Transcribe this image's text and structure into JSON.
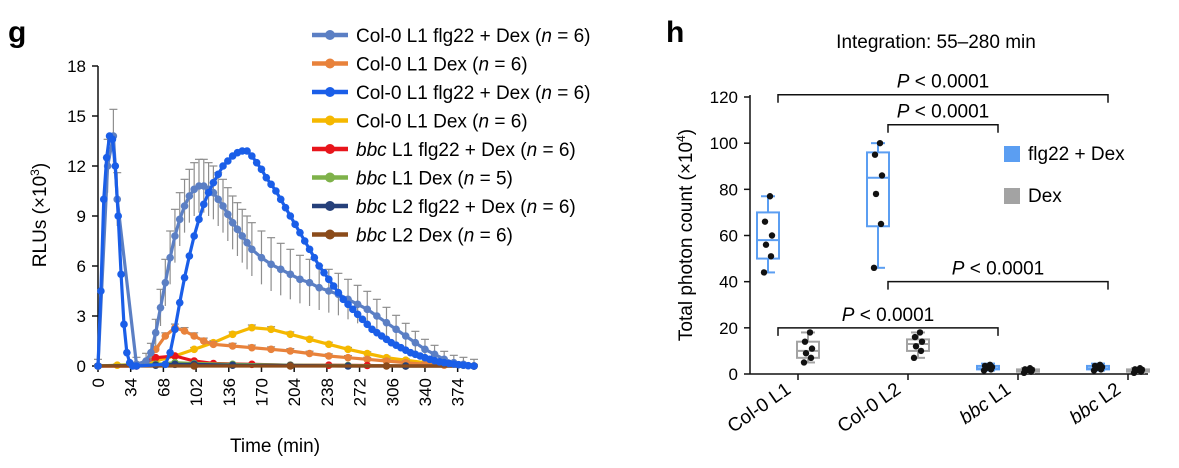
{
  "chart_data": [
    {
      "panel": "g",
      "type": "line",
      "xlabel": "Time (min)",
      "ylabel": "RLUs (×10³)",
      "ylabel_main": "RLUs (×10",
      "ylabel_sup": "3",
      "ylabel_end": ")",
      "xlim": [
        0,
        391
      ],
      "ylim": [
        0,
        18
      ],
      "xticks": [
        0,
        34,
        68,
        102,
        136,
        170,
        204,
        238,
        272,
        306,
        340,
        374
      ],
      "yticks": [
        0,
        3,
        6,
        9,
        12,
        15,
        18
      ],
      "grid": false,
      "legend_position": "top-right",
      "legend": [
        {
          "pre": "",
          "name": "Col-0 L1 flg22 + Dex (",
          "n": "n",
          "eq": " = 6)",
          "color": "#5b7fc4"
        },
        {
          "pre": "",
          "name": "Col-0 L1 Dex (",
          "n": "n",
          "eq": " = 6)",
          "color": "#e8823b"
        },
        {
          "pre": "",
          "name": "Col-0 L1 flg22 + Dex (",
          "n": "n",
          "eq": " = 6)",
          "color": "#1a5ee8"
        },
        {
          "pre": "",
          "name": "Col-0 L1 Dex (",
          "n": "n",
          "eq": " = 6)",
          "color": "#f5b800"
        },
        {
          "pre": "bbc",
          "name": " L1 flg22 + Dex (",
          "n": "n",
          "eq": " = 6)",
          "color": "#e8151b"
        },
        {
          "pre": "bbc",
          "name": " L1 Dex (",
          "n": "n",
          "eq": " = 5)",
          "color": "#7fb24a"
        },
        {
          "pre": "bbc",
          "name": " L2 flg22 + Dex (",
          "n": "n",
          "eq": " = 6)",
          "color": "#25407a"
        },
        {
          "pre": "bbc",
          "name": " L2 Dex (",
          "n": "n",
          "eq": " = 6)",
          "color": "#8b4b1a"
        }
      ],
      "series": [
        {
          "color": "#f5b800",
          "err": 0.3,
          "x": [
            0,
            20,
            40,
            60,
            80,
            100,
            120,
            140,
            160,
            180,
            200,
            220,
            240,
            260,
            280,
            300,
            320,
            340,
            360,
            380,
            391
          ],
          "y": [
            0,
            0.05,
            0.1,
            0.3,
            0.6,
            1.0,
            1.4,
            1.9,
            2.3,
            2.2,
            1.9,
            1.6,
            1.3,
            1.0,
            0.75,
            0.5,
            0.35,
            0.2,
            0.1,
            0.05,
            0
          ]
        },
        {
          "color": "#e8823b",
          "err": 0.4,
          "x": [
            0,
            40,
            50,
            60,
            70,
            80,
            90,
            100,
            110,
            120,
            140,
            160,
            180,
            200,
            220,
            240,
            260,
            280,
            300,
            320,
            340,
            360,
            391
          ],
          "y": [
            0,
            0,
            0.2,
            1.0,
            1.8,
            2.3,
            2.1,
            1.8,
            1.5,
            1.3,
            1.2,
            1.1,
            1.0,
            0.9,
            0.75,
            0.6,
            0.5,
            0.4,
            0.3,
            0.2,
            0.1,
            0.05,
            0
          ]
        },
        {
          "color": "#e8151b",
          "err": 0.1,
          "x": [
            0,
            40,
            60,
            80,
            100,
            120,
            160,
            200,
            240,
            280,
            320,
            391
          ],
          "y": [
            0,
            0,
            0.5,
            0.6,
            0.3,
            0.15,
            0.1,
            0.05,
            0.05,
            0.03,
            0,
            0
          ]
        },
        {
          "color": "#7fb24a",
          "err": 0.05,
          "x": [
            0,
            60,
            80,
            100,
            140,
            200,
            260,
            320,
            391
          ],
          "y": [
            0,
            0.1,
            0.2,
            0.15,
            0.1,
            0.05,
            0.03,
            0,
            0
          ]
        },
        {
          "color": "#25407a",
          "err": 0.05,
          "x": [
            0,
            60,
            80,
            100,
            140,
            200,
            260,
            320,
            391
          ],
          "y": [
            0,
            0.05,
            0.1,
            0.1,
            0.05,
            0.03,
            0,
            0,
            0
          ]
        },
        {
          "color": "#8b4b1a",
          "err": 0.05,
          "x": [
            0,
            100,
            200,
            300,
            391
          ],
          "y": [
            0,
            0,
            0,
            0,
            0
          ]
        },
        {
          "color": "#5b7fc4",
          "err": 1.6,
          "x": [
            0,
            10,
            16,
            20,
            40,
            50,
            55,
            60,
            65,
            70,
            75,
            80,
            85,
            90,
            95,
            100,
            105,
            110,
            115,
            120,
            125,
            130,
            135,
            140,
            145,
            150,
            155,
            160,
            170,
            180,
            190,
            200,
            210,
            220,
            230,
            240,
            250,
            260,
            270,
            280,
            290,
            300,
            310,
            320,
            330,
            340,
            350,
            360,
            370,
            380,
            391
          ],
          "y": [
            0,
            12,
            13.8,
            10,
            0.1,
            0.3,
            0.8,
            2.0,
            3.5,
            5.0,
            6.5,
            7.8,
            8.8,
            9.6,
            10.2,
            10.6,
            10.8,
            10.8,
            10.6,
            10.4,
            10.0,
            9.6,
            9.1,
            8.6,
            8.2,
            7.8,
            7.4,
            7.0,
            6.5,
            6.1,
            5.8,
            5.5,
            5.2,
            5.0,
            4.7,
            4.5,
            4.3,
            4.0,
            3.7,
            3.4,
            3.0,
            2.6,
            2.2,
            1.8,
            1.4,
            1.0,
            0.7,
            0.4,
            0.2,
            0.1,
            0
          ]
        },
        {
          "color": "#1a5ee8",
          "err": 0,
          "x": [
            0,
            3,
            6,
            9,
            12,
            15,
            18,
            21,
            24,
            27,
            30,
            33,
            36,
            40,
            70,
            75,
            80,
            85,
            90,
            95,
            100,
            105,
            110,
            115,
            120,
            125,
            130,
            135,
            140,
            145,
            150,
            155,
            160,
            165,
            170,
            175,
            180,
            185,
            190,
            195,
            200,
            205,
            210,
            215,
            220,
            225,
            230,
            235,
            240,
            245,
            250,
            255,
            260,
            265,
            270,
            275,
            280,
            285,
            290,
            295,
            300,
            305,
            310,
            315,
            320,
            325,
            330,
            335,
            340,
            345,
            350,
            355,
            360,
            365,
            370,
            375,
            380,
            385,
            391
          ],
          "y": [
            0,
            4.5,
            10.0,
            12.5,
            13.8,
            13.6,
            12.0,
            9.0,
            5.5,
            2.5,
            0.8,
            0.2,
            0,
            0,
            0.1,
            0.8,
            2.2,
            3.8,
            5.3,
            6.6,
            7.8,
            8.8,
            9.7,
            10.4,
            11.0,
            11.5,
            12.0,
            12.3,
            12.6,
            12.8,
            12.9,
            12.9,
            12.6,
            12.2,
            11.8,
            11.3,
            10.9,
            10.5,
            10.0,
            9.5,
            9.0,
            8.5,
            8.0,
            7.5,
            7.0,
            6.5,
            6.0,
            5.6,
            5.2,
            4.8,
            4.4,
            4.0,
            3.7,
            3.4,
            3.1,
            2.8,
            2.5,
            2.2,
            2.0,
            1.8,
            1.6,
            1.4,
            1.25,
            1.1,
            0.95,
            0.8,
            0.7,
            0.6,
            0.5,
            0.4,
            0.32,
            0.25,
            0.2,
            0.15,
            0.12,
            0.08,
            0.05,
            0.02,
            0
          ]
        }
      ]
    },
    {
      "panel": "h",
      "type": "box",
      "title": "Integration: 55–280 min",
      "ylabel": "Total photon count (×10⁴)",
      "ylabel_main": "Total photon count (×10",
      "ylabel_sup": "4",
      "ylabel_end": ")",
      "ylim": [
        0,
        120
      ],
      "yticks": [
        0,
        20,
        40,
        60,
        80,
        100,
        120
      ],
      "categories": [
        {
          "pre": "",
          "label": "Col-0 L1"
        },
        {
          "pre": "",
          "label": "Col-0 L2"
        },
        {
          "pre": "bbc",
          "label": " L1"
        },
        {
          "pre": "bbc",
          "label": " L2"
        }
      ],
      "legend": [
        {
          "name": "flg22 + Dex",
          "color": "#5b9ef2"
        },
        {
          "name": "Dex",
          "color": "#a3a3a3"
        }
      ],
      "groups": [
        {
          "name": "flg22 + Dex",
          "color": "#5b9ef2",
          "boxes": [
            {
              "whisker_low": 44,
              "q1": 50,
              "median": 58,
              "q3": 70,
              "whisker_high": 77,
              "points": [
                44,
                51,
                56,
                60,
                66,
                77
              ]
            },
            {
              "whisker_low": 46,
              "q1": 64,
              "median": 85,
              "q3": 96,
              "whisker_high": 100,
              "points": [
                46,
                65,
                78,
                86,
                95,
                100
              ]
            },
            {
              "whisker_low": 1.5,
              "q1": 2,
              "median": 2.5,
              "q3": 3.5,
              "whisker_high": 4.5,
              "points": [
                1.5,
                2,
                2.5,
                3,
                3.5,
                4
              ]
            },
            {
              "whisker_low": 1.5,
              "q1": 2,
              "median": 2.5,
              "q3": 3.5,
              "whisker_high": 4.5,
              "points": [
                1.5,
                2,
                2.5,
                3,
                3.5,
                4
              ]
            }
          ]
        },
        {
          "name": "Dex",
          "color": "#a3a3a3",
          "boxes": [
            {
              "whisker_low": 5,
              "q1": 7,
              "median": 10,
              "q3": 14,
              "whisker_high": 18,
              "points": [
                5,
                7,
                9,
                11,
                14,
                18
              ]
            },
            {
              "whisker_low": 7,
              "q1": 10,
              "median": 13,
              "q3": 15,
              "whisker_high": 18,
              "points": [
                7,
                10,
                12,
                14,
                16,
                18
              ]
            },
            {
              "whisker_low": 0.5,
              "q1": 1,
              "median": 1.5,
              "q3": 2,
              "whisker_high": 2.5,
              "points": [
                0.5,
                1,
                1.5,
                1.8,
                2,
                2.5
              ]
            },
            {
              "whisker_low": 0.5,
              "q1": 1,
              "median": 1.5,
              "q3": 2,
              "whisker_high": 2.5,
              "points": [
                0.5,
                1,
                1.5,
                1.8,
                2,
                2.5
              ]
            }
          ]
        }
      ],
      "significance": [
        {
          "from": 0,
          "to": 3,
          "y": 121,
          "label_p": "P",
          "label_rest": " < 0.0001"
        },
        {
          "from": 1,
          "to": 2,
          "y": 108,
          "label_p": "P",
          "label_rest": " < 0.0001"
        },
        {
          "from": 1,
          "to": 3,
          "y": 40,
          "label_p": "P",
          "label_rest": " < 0.0001"
        },
        {
          "from": 0,
          "to": 2,
          "y": 20,
          "label_p": "P",
          "label_rest": " < 0.0001"
        }
      ]
    }
  ]
}
